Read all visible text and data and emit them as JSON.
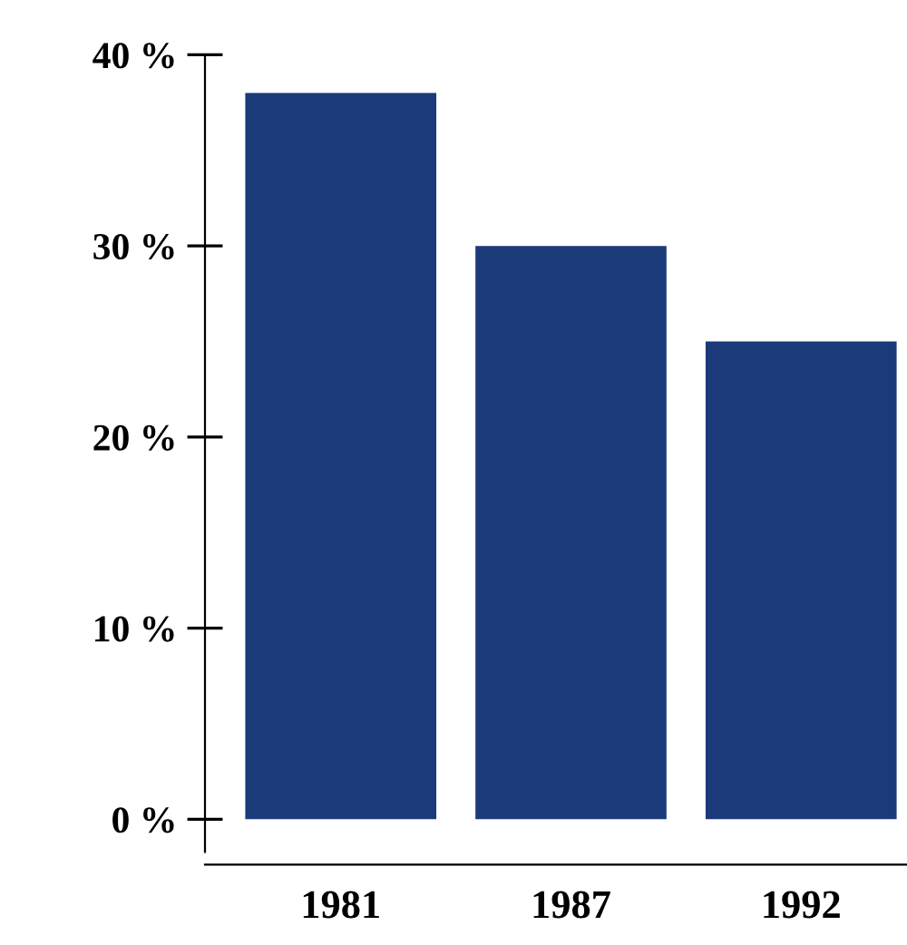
{
  "chart_data": {
    "type": "bar",
    "categories": [
      "1981",
      "1987",
      "1992"
    ],
    "values": [
      38,
      30,
      25
    ],
    "color": "#1b3a7a",
    "ylim": [
      0,
      40
    ],
    "yticks": [
      {
        "value": 0,
        "label": "0 %"
      },
      {
        "value": 10,
        "label": "10 %"
      },
      {
        "value": 20,
        "label": "20 %"
      },
      {
        "value": 30,
        "label": "30 %"
      },
      {
        "value": 40,
        "label": "40 %"
      }
    ],
    "grid": false,
    "legend": false
  }
}
